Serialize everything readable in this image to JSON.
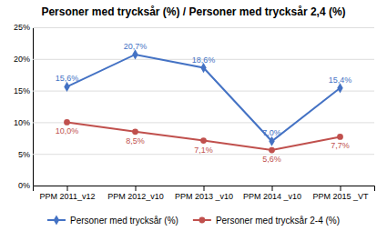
{
  "chart_data": {
    "type": "line",
    "title": "Personer med trycksår (%) / Personer med trycksår 2,4 (%)",
    "categories": [
      "PPM 2011_v12",
      "PPM 2012_v10",
      "PPM 2013 _v10",
      "PPM 2014 _v10",
      "PPM 2015 _VT"
    ],
    "series": [
      {
        "name": "Personer med trycksår (%)",
        "color": "#4472c4",
        "marker": "diamond",
        "values": [
          15.6,
          20.7,
          18.6,
          7.0,
          15.4
        ],
        "value_labels": [
          "15,6%",
          "20,7%",
          "18,6%",
          "7,0%",
          "15,4%"
        ]
      },
      {
        "name": "Personer med trycksår 2-4 (%)",
        "color": "#c0504d",
        "marker": "circle",
        "values": [
          10.0,
          8.5,
          7.1,
          5.6,
          7.7
        ],
        "value_labels": [
          "10,0%",
          "8,5%",
          "7,1%",
          "5,6%",
          "7,7%"
        ]
      }
    ],
    "ylim": [
      0,
      25
    ],
    "yticks": [
      {
        "value": 0,
        "label": "0%"
      },
      {
        "value": 5,
        "label": "5%"
      },
      {
        "value": 10,
        "label": "10%"
      },
      {
        "value": 15,
        "label": "15%"
      },
      {
        "value": 20,
        "label": "20%"
      },
      {
        "value": 25,
        "label": "25%"
      }
    ],
    "grid": true,
    "legend": "bottom",
    "data_labels": true
  }
}
